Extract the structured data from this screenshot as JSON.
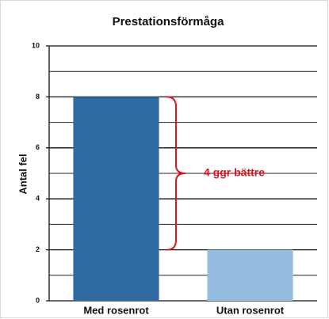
{
  "chart_data": {
    "type": "bar",
    "title": "Prestationsförmåga",
    "ylabel": "Antal fel",
    "categories": [
      "Med rosenrot",
      "Utan rosenrot"
    ],
    "series": [
      {
        "name": null,
        "colors": [
          "#2f6aa3",
          "#95bde0"
        ],
        "values": [
          8,
          2
        ]
      }
    ],
    "ylim": [
      0,
      10
    ],
    "yticks": [
      0,
      2,
      4,
      6,
      8,
      10
    ],
    "yminorticks": [
      1,
      3,
      5,
      7,
      9
    ],
    "grid": true,
    "annotation": {
      "text": "4 ggr bättre",
      "color": "#e0141e",
      "from": 8,
      "to": 2
    }
  }
}
